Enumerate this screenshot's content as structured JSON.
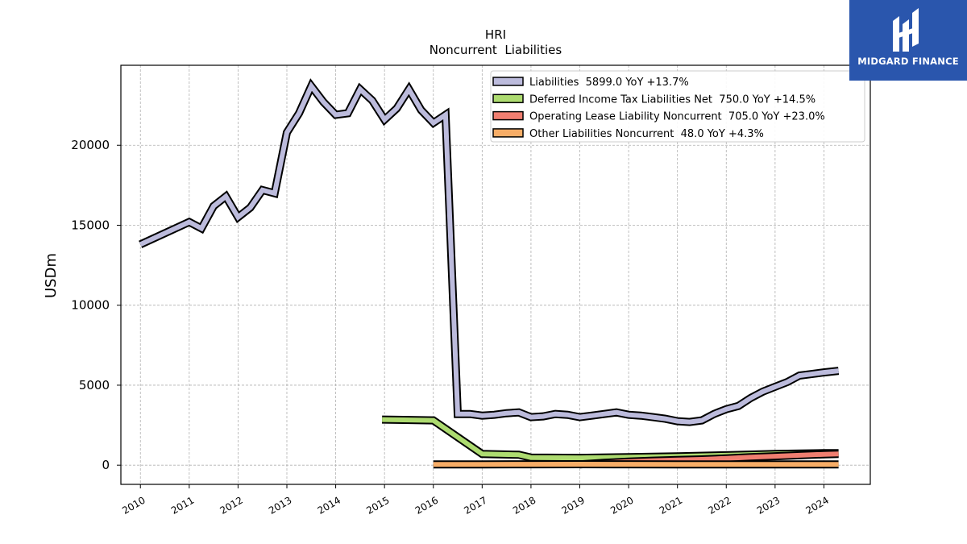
{
  "chart_data": {
    "type": "line",
    "title": "HRI",
    "subtitle": "Noncurrent  Liabilities",
    "xlabel": "",
    "ylabel": "USDm",
    "xlim": [
      2009.6,
      2024.95
    ],
    "ylim": [
      -1200,
      25000
    ],
    "x_ticks": [
      2010,
      2011,
      2012,
      2013,
      2014,
      2015,
      2016,
      2017,
      2018,
      2019,
      2020,
      2021,
      2022,
      2023,
      2024
    ],
    "y_ticks": [
      0,
      5000,
      10000,
      15000,
      20000
    ],
    "grid": true,
    "legend_position": "top-right",
    "series": [
      {
        "name": "Liabilities  5899.0 YoY +13.7%",
        "color": "#bcbbdc",
        "x": [
          2010.0,
          2011.0,
          2011.25,
          2011.5,
          2011.75,
          2012.0,
          2012.25,
          2012.5,
          2012.75,
          2013.0,
          2013.25,
          2013.5,
          2013.75,
          2014.0,
          2014.25,
          2014.5,
          2014.75,
          2015.0,
          2015.25,
          2015.5,
          2015.75,
          2016.0,
          2016.25,
          2016.5,
          2016.75,
          2017.0,
          2017.25,
          2017.5,
          2017.75,
          2018.0,
          2018.25,
          2018.5,
          2018.75,
          2019.0,
          2019.25,
          2019.5,
          2019.75,
          2020.0,
          2020.25,
          2020.5,
          2020.75,
          2021.0,
          2021.25,
          2021.5,
          2021.75,
          2022.0,
          2022.25,
          2022.5,
          2022.75,
          2023.0,
          2023.25,
          2023.5,
          2023.75,
          2024.0,
          2024.3
        ],
        "values": [
          13800,
          15200,
          14800,
          16200,
          16800,
          15500,
          16100,
          17200,
          17000,
          20800,
          22000,
          23700,
          22700,
          21900,
          22000,
          23500,
          22800,
          21600,
          22300,
          23500,
          22200,
          21400,
          21900,
          3200,
          3200,
          3100,
          3150,
          3250,
          3300,
          3000,
          3050,
          3200,
          3150,
          3000,
          3100,
          3200,
          3300,
          3150,
          3100,
          3000,
          2900,
          2750,
          2700,
          2800,
          3200,
          3500,
          3700,
          4200,
          4600,
          4900,
          5200,
          5600,
          5700,
          5800,
          5899
        ]
      },
      {
        "name": "Deferred Income Tax Liabilities Net  750.0 YoY +14.5%",
        "color": "#addb70",
        "x": [
          2014.95,
          2016.0,
          2017.0,
          2017.75,
          2018.0,
          2019.0,
          2020.0,
          2021.0,
          2022.0,
          2023.0,
          2024.0,
          2024.3
        ],
        "values": [
          2850,
          2800,
          700,
          650,
          480,
          460,
          500,
          550,
          620,
          700,
          750,
          750
        ]
      },
      {
        "name": "Operating Lease Liability Noncurrent  705.0 YoY +23.0%",
        "color": "#f07e70",
        "x": [
          2019.0,
          2019.5,
          2020.0,
          2020.5,
          2021.0,
          2021.5,
          2022.0,
          2022.5,
          2023.0,
          2023.5,
          2024.0,
          2024.3
        ],
        "values": [
          50,
          150,
          220,
          280,
          320,
          360,
          420,
          500,
          560,
          620,
          680,
          705
        ]
      },
      {
        "name": "Other Liabilities Noncurrent  48.0 YoY +4.3%",
        "color": "#f7ad67",
        "x": [
          2016.0,
          2017.0,
          2018.0,
          2019.0,
          2020.0,
          2021.0,
          2022.0,
          2023.0,
          2024.0,
          2024.3
        ],
        "values": [
          45,
          50,
          55,
          60,
          55,
          50,
          45,
          46,
          47,
          48
        ]
      }
    ]
  },
  "logo": {
    "brand": "MIDGARD FINANCE",
    "background": "#2a56ad"
  }
}
